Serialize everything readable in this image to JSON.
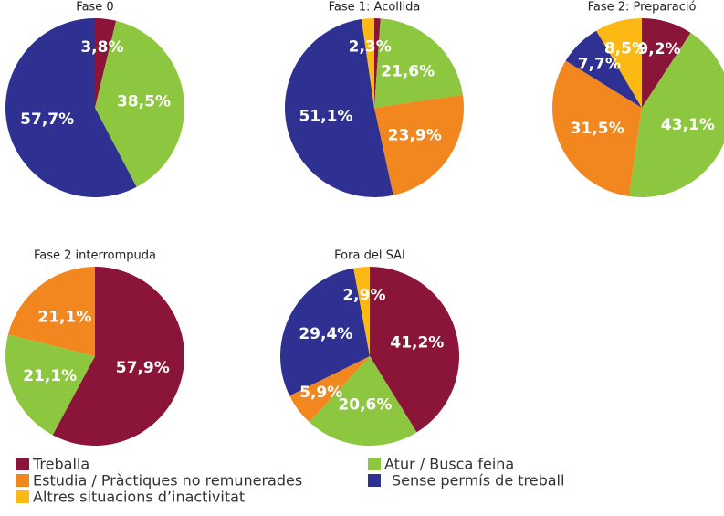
{
  "legend": {
    "items": [
      {
        "name": "Treballa",
        "color": "#8a1538"
      },
      {
        "name": "Atur / Busca feina",
        "color": "#8dc63f"
      },
      {
        "name": "Estudia / Pràctiques no remunerades",
        "color": "#f3871f"
      },
      {
        "name": "Sense permís de treball",
        "color": "#2e3192"
      },
      {
        "name": "Altres situacions d’inactivitat",
        "color": "#fdb913"
      }
    ]
  },
  "chart_data": [
    {
      "type": "pie",
      "title": "Fase 0",
      "values": [
        3.8,
        38.5,
        0,
        57.7,
        0
      ],
      "value_labels": [
        "3,8%",
        "38,5%",
        null,
        "57,7%",
        null
      ]
    },
    {
      "type": "pie",
      "title": "Fase 1: Acollida",
      "values": [
        1.1,
        21.6,
        23.9,
        51.1,
        2.3
      ],
      "value_labels": [
        null,
        "21,6%",
        "23,9%",
        "51,1%",
        "2,3%"
      ]
    },
    {
      "type": "pie",
      "title": "Fase 2: Preparació",
      "values": [
        9.2,
        43.1,
        31.5,
        7.7,
        8.5
      ],
      "value_labels": [
        "9,2%",
        "43,1%",
        "31,5%",
        "7,7%",
        "8,5%"
      ]
    },
    {
      "type": "pie",
      "title": "Fase 2 interrompuda",
      "values": [
        57.9,
        21.1,
        21.1,
        0,
        0
      ],
      "value_labels": [
        "57,9%",
        "21,1%",
        "21,1%",
        null,
        null
      ]
    },
    {
      "type": "pie",
      "title": "Fora del SAI",
      "values": [
        41.2,
        20.6,
        5.9,
        29.4,
        2.9
      ],
      "value_labels": [
        "41,2%",
        "20,6%",
        "5,9%",
        "29,4%",
        "2,9%"
      ]
    }
  ]
}
